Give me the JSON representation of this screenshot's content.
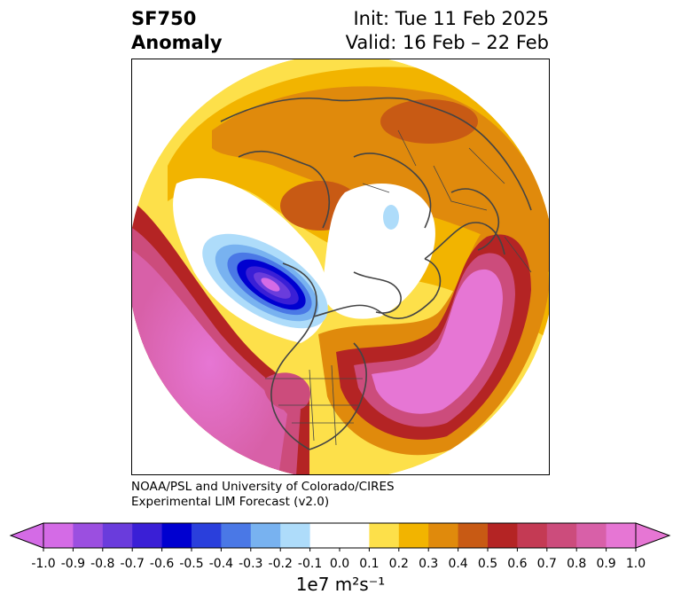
{
  "title": {
    "left_line1": "SF750",
    "left_line2": "Anomaly",
    "right_line1": "Init: Tue 11 Feb 2025",
    "right_line2": "Valid: 16 Feb – 22 Feb"
  },
  "credits": {
    "line1": "NOAA/PSL and University of Colorado/CIRES",
    "line2": "Experimental LIM Forecast (v2.0)"
  },
  "colorbar": {
    "unit_label": "1e7 m²s⁻¹",
    "levels": [
      "-1.0",
      "-0.9",
      "-0.8",
      "-0.7",
      "-0.6",
      "-0.5",
      "-0.4",
      "-0.3",
      "-0.2",
      "-0.1",
      "0.0",
      "0.1",
      "0.2",
      "0.3",
      "0.4",
      "0.5",
      "0.6",
      "0.7",
      "0.8",
      "0.9",
      "1.0"
    ],
    "colors": [
      "#d46be6",
      "#9b4fe0",
      "#6a3cdc",
      "#3a1fd6",
      "#0000d0",
      "#2a3fdc",
      "#4a78e6",
      "#78b2f0",
      "#aedcfa",
      "#ffffff",
      "#ffffff",
      "#fde04a",
      "#f2b400",
      "#e08a0c",
      "#c85a14",
      "#b42424",
      "#c43a54",
      "#cc4c7c",
      "#d860a8",
      "#e676d4"
    ],
    "extend_min_color": "#d46be6",
    "extend_max_color": "#e676d4"
  }
}
